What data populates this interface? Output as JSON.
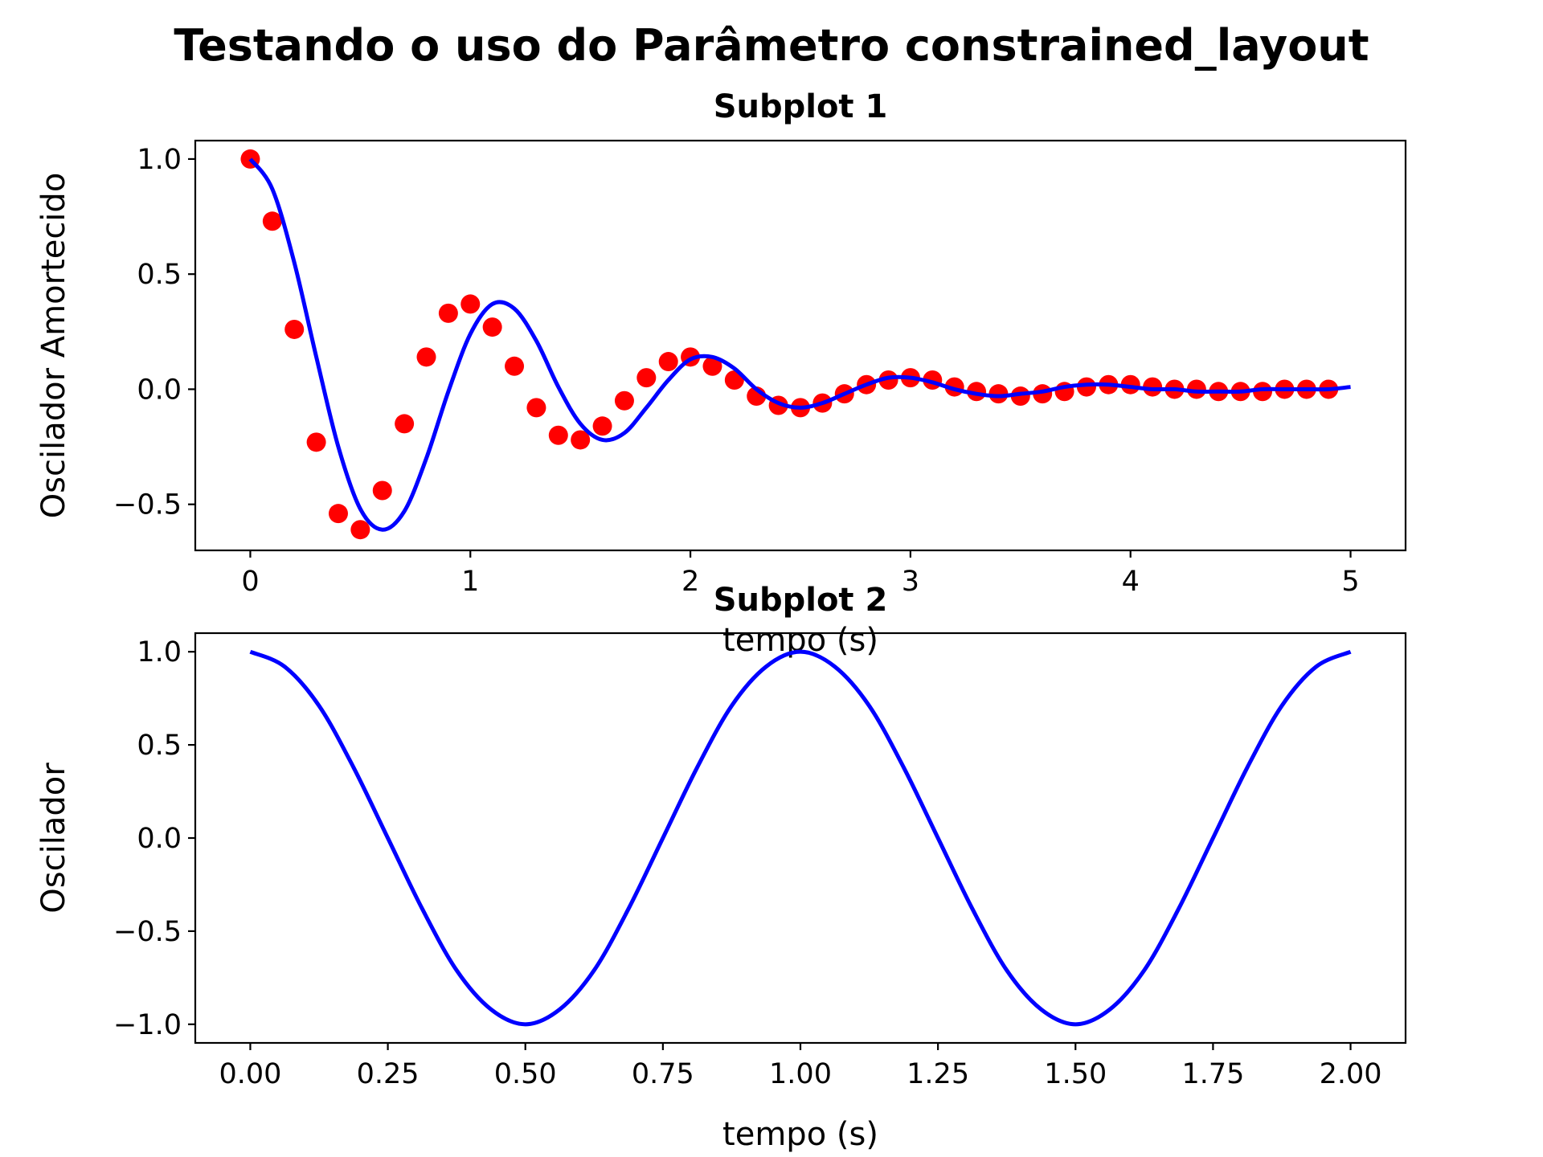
{
  "figure": {
    "suptitle": "Testando o uso do Parâmetro constrained_layout"
  },
  "colors": {
    "line": "#0000ff",
    "markers": "#ff0000"
  },
  "chart_data": [
    {
      "type": "line",
      "title": "Subplot 1",
      "xlabel": "tempo (s)",
      "ylabel": "Oscilador Amortecido",
      "xlim": [
        -0.25,
        5.25
      ],
      "ylim": [
        -0.7,
        1.08
      ],
      "xticks": [
        0,
        1,
        2,
        3,
        4,
        5
      ],
      "xtick_labels": [
        "0",
        "1",
        "2",
        "3",
        "4",
        "5"
      ],
      "yticks": [
        -0.5,
        0.0,
        0.5,
        1.0
      ],
      "ytick_labels": [
        "−0.5",
        "0.0",
        "0.5",
        "1.0"
      ],
      "series": [
        {
          "style": "markers",
          "color": "#ff0000",
          "x": [
            0.0,
            0.1,
            0.2,
            0.3,
            0.4,
            0.5,
            0.6,
            0.7,
            0.8,
            0.9,
            1.0,
            1.1,
            1.2,
            1.3,
            1.4,
            1.5,
            1.6,
            1.7,
            1.8,
            1.9,
            2.0,
            2.1,
            2.2,
            2.3,
            2.4,
            2.5,
            2.6,
            2.7,
            2.8,
            2.9,
            3.0,
            3.1,
            3.2,
            3.3,
            3.4,
            3.5,
            3.6,
            3.7,
            3.8,
            3.9,
            4.0,
            4.1,
            4.2,
            4.3,
            4.4,
            4.5,
            4.6,
            4.7,
            4.8,
            4.9
          ],
          "y": [
            1.0,
            0.73,
            0.26,
            -0.23,
            -0.54,
            -0.61,
            -0.44,
            -0.15,
            0.14,
            0.33,
            0.37,
            0.27,
            0.1,
            -0.08,
            -0.2,
            -0.22,
            -0.16,
            -0.05,
            0.05,
            0.12,
            0.14,
            0.1,
            0.04,
            -0.03,
            -0.07,
            -0.08,
            -0.06,
            -0.02,
            0.02,
            0.04,
            0.05,
            0.04,
            0.01,
            -0.01,
            -0.02,
            -0.03,
            -0.02,
            -0.01,
            0.01,
            0.02,
            0.02,
            0.01,
            0.0,
            0.0,
            -0.01,
            -0.01,
            -0.01,
            0.0,
            0.0,
            0.0
          ]
        },
        {
          "style": "line",
          "color": "#0000ff",
          "x_range": [
            0,
            5
          ],
          "y": [
            1.0,
            0.87,
            0.55,
            0.14,
            -0.25,
            -0.52,
            -0.61,
            -0.53,
            -0.3,
            -0.01,
            0.24,
            0.37,
            0.35,
            0.21,
            0.01,
            -0.15,
            -0.22,
            -0.19,
            -0.08,
            0.04,
            0.13,
            0.14,
            0.09,
            0.0,
            -0.06,
            -0.08,
            -0.06,
            -0.02,
            0.02,
            0.05,
            0.05,
            0.03,
            0.0,
            -0.02,
            -0.03,
            -0.02,
            -0.01,
            0.01,
            0.02,
            0.02,
            0.01,
            0.0,
            0.0,
            -0.01,
            -0.01,
            -0.01,
            0.0,
            0.0,
            0.0,
            0.0,
            0.01
          ]
        }
      ]
    },
    {
      "type": "line",
      "title": "Subplot 2",
      "xlabel": "tempo (s)",
      "ylabel": "Oscilador",
      "xlim": [
        -0.1,
        2.1
      ],
      "ylim": [
        -1.1,
        1.1
      ],
      "xticks": [
        0.0,
        0.25,
        0.5,
        0.75,
        1.0,
        1.25,
        1.5,
        1.75,
        2.0
      ],
      "xtick_labels": [
        "0.00",
        "0.25",
        "0.50",
        "0.75",
        "1.00",
        "1.25",
        "1.50",
        "1.75",
        "2.00"
      ],
      "yticks": [
        -1.0,
        -0.5,
        0.0,
        0.5,
        1.0
      ],
      "ytick_labels": [
        "−1.0",
        "−0.5",
        "0.0",
        "0.5",
        "1.0"
      ],
      "series": [
        {
          "style": "line",
          "color": "#0000ff",
          "x_range": [
            0,
            2
          ],
          "y": [
            1.0,
            0.92,
            0.71,
            0.38,
            0.0,
            -0.38,
            -0.71,
            -0.92,
            -1.0,
            -0.92,
            -0.71,
            -0.38,
            0.0,
            0.38,
            0.71,
            0.92,
            1.0,
            0.92,
            0.71,
            0.38,
            0.0,
            -0.38,
            -0.71,
            -0.92,
            -1.0,
            -0.92,
            -0.71,
            -0.38,
            0.0,
            0.38,
            0.71,
            0.92,
            1.0
          ]
        }
      ]
    }
  ]
}
